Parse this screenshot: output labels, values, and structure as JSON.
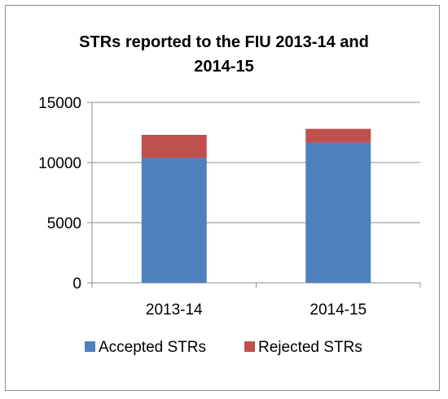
{
  "chart_data": {
    "type": "bar",
    "stacked": true,
    "title_lines": [
      "STRs reported to the FIU 2013-14 and",
      "2014-15"
    ],
    "categories": [
      "2013-14",
      "2014-15"
    ],
    "series": [
      {
        "name": "Accepted STRs",
        "values": [
          10400,
          11650
        ],
        "color": "#4f81bd"
      },
      {
        "name": "Rejected STRs",
        "values": [
          1900,
          1150
        ],
        "color": "#c0504d"
      }
    ],
    "ylim": [
      0,
      15000
    ],
    "yticks": [
      "0",
      "5000",
      "10000",
      "15000"
    ],
    "grid": true,
    "legend": "bottom"
  }
}
